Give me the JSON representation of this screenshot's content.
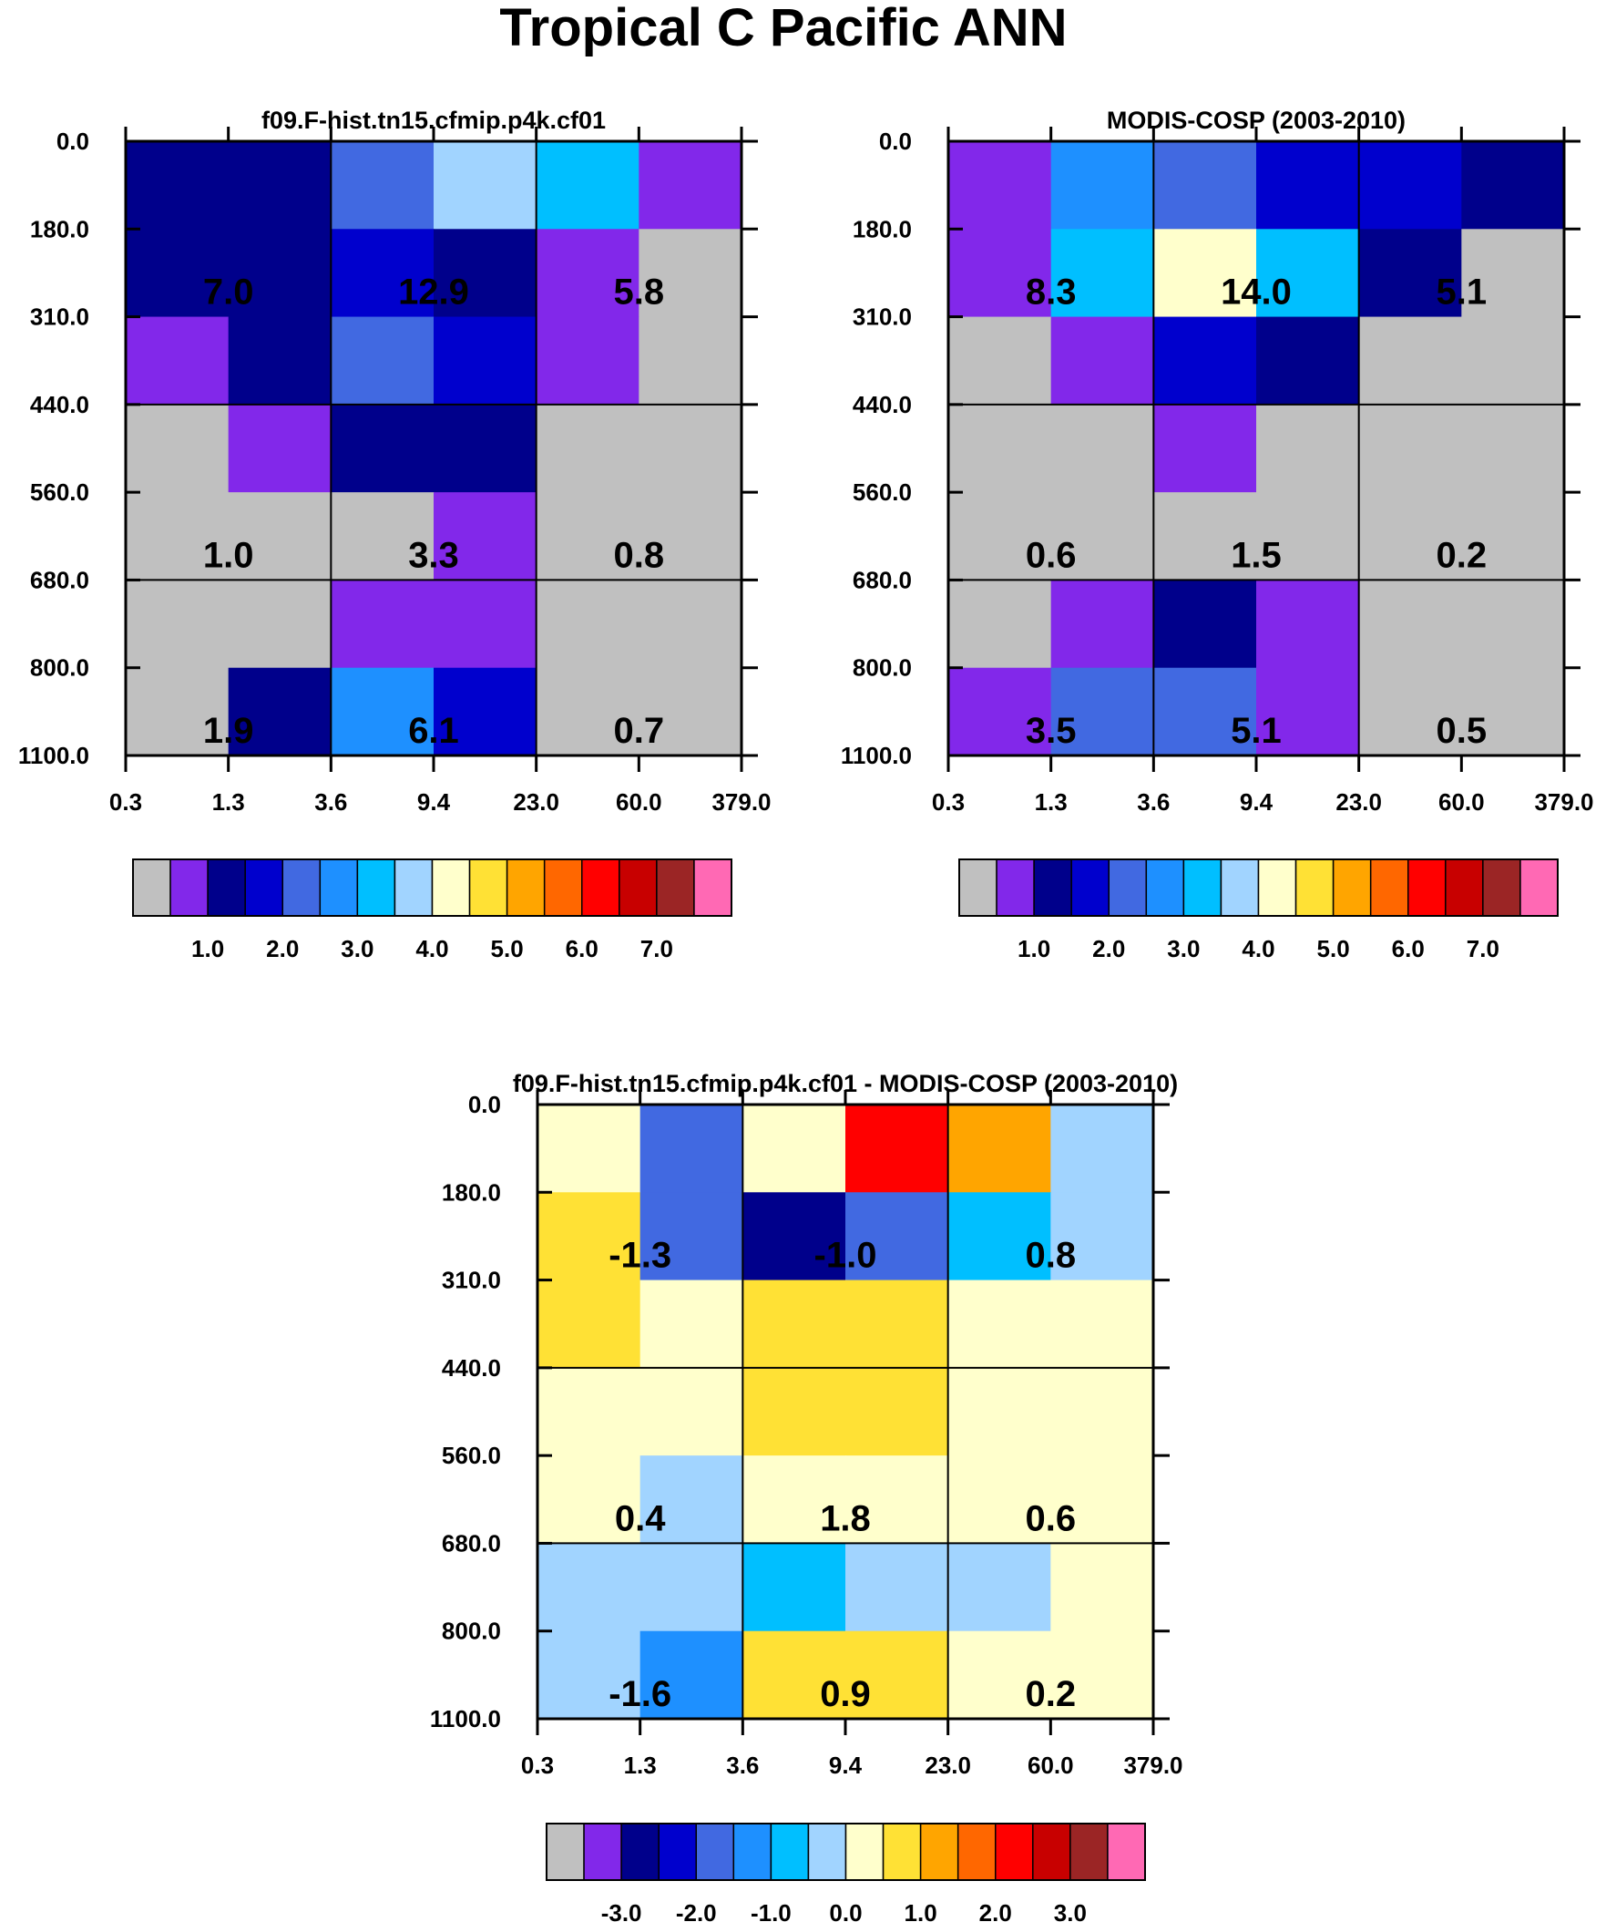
{
  "title": "Tropical C Pacific ANN",
  "colors": {
    "palette": [
      "#c0c0c0",
      "#8228ea",
      "#00008b",
      "#0000cd",
      "#4169e1",
      "#1e90ff",
      "#00bfff",
      "#a1d4ff",
      "#ffffcc",
      "#ffe135",
      "#ffa500",
      "#ff6700",
      "#ff0000",
      "#c80000",
      "#9b2525",
      "#ff69b4"
    ],
    "grid": "#000000"
  },
  "chart_data": [
    {
      "type": "heatmap",
      "title": "f09.F-hist.tn15.cfmip.p4k.cf01",
      "xticks": [
        "0.3",
        "1.3",
        "3.6",
        "9.4",
        "23.0",
        "60.0",
        "379.0"
      ],
      "yticks": [
        "0.0",
        "180.0",
        "310.0",
        "440.0",
        "560.0",
        "680.0",
        "800.0",
        "1100.0"
      ],
      "cell_colors": [
        [
          2,
          2,
          4,
          7,
          6,
          1
        ],
        [
          2,
          2,
          3,
          2,
          1,
          0
        ],
        [
          1,
          2,
          4,
          3,
          1,
          0
        ],
        [
          0,
          1,
          2,
          2,
          0,
          0
        ],
        [
          0,
          0,
          0,
          1,
          0,
          0
        ],
        [
          0,
          0,
          1,
          1,
          0,
          0
        ],
        [
          0,
          2,
          5,
          3,
          0,
          0
        ]
      ],
      "block_labels": [
        [
          "7.0",
          "12.9",
          "5.8"
        ],
        [
          "1.0",
          "3.3",
          "0.8"
        ],
        [
          "1.9",
          "6.1",
          "0.7"
        ]
      ],
      "colorbar": {
        "labels": [
          "1.0",
          "2.0",
          "3.0",
          "4.0",
          "5.0",
          "6.0",
          "7.0"
        ]
      }
    },
    {
      "type": "heatmap",
      "title": "MODIS-COSP (2003-2010)",
      "xticks": [
        "0.3",
        "1.3",
        "3.6",
        "9.4",
        "23.0",
        "60.0",
        "379.0"
      ],
      "yticks": [
        "0.0",
        "180.0",
        "310.0",
        "440.0",
        "560.0",
        "680.0",
        "800.0",
        "1100.0"
      ],
      "cell_colors": [
        [
          1,
          5,
          4,
          3,
          3,
          2
        ],
        [
          1,
          6,
          8,
          6,
          2,
          0
        ],
        [
          0,
          1,
          3,
          2,
          0,
          0
        ],
        [
          0,
          0,
          1,
          0,
          0,
          0
        ],
        [
          0,
          0,
          0,
          0,
          0,
          0
        ],
        [
          0,
          1,
          2,
          1,
          0,
          0
        ],
        [
          1,
          4,
          4,
          1,
          0,
          0
        ]
      ],
      "block_labels": [
        [
          "8.3",
          "14.0",
          "5.1"
        ],
        [
          "0.6",
          "1.5",
          "0.2"
        ],
        [
          "3.5",
          "5.1",
          "0.5"
        ]
      ],
      "colorbar": {
        "labels": [
          "1.0",
          "2.0",
          "3.0",
          "4.0",
          "5.0",
          "6.0",
          "7.0"
        ]
      }
    },
    {
      "type": "heatmap",
      "title": "f09.F-hist.tn15.cfmip.p4k.cf01 - MODIS-COSP (2003-2010)",
      "xticks": [
        "0.3",
        "1.3",
        "3.6",
        "9.4",
        "23.0",
        "60.0",
        "379.0"
      ],
      "yticks": [
        "0.0",
        "180.0",
        "310.0",
        "440.0",
        "560.0",
        "680.0",
        "800.0",
        "1100.0"
      ],
      "cell_colors": [
        [
          8,
          4,
          8,
          12,
          10,
          7
        ],
        [
          9,
          4,
          2,
          4,
          6,
          7
        ],
        [
          9,
          8,
          9,
          9,
          8,
          8
        ],
        [
          8,
          8,
          9,
          9,
          8,
          8
        ],
        [
          8,
          7,
          8,
          8,
          8,
          8
        ],
        [
          7,
          7,
          6,
          7,
          7,
          8
        ],
        [
          7,
          5,
          9,
          9,
          8,
          8
        ]
      ],
      "block_labels": [
        [
          "-1.3",
          "-1.0",
          "0.8"
        ],
        [
          "0.4",
          "1.8",
          "0.6"
        ],
        [
          "-1.6",
          "0.9",
          "0.2"
        ]
      ],
      "colorbar": {
        "labels": [
          "-3.0",
          "-2.0",
          "-1.0",
          "0.0",
          "1.0",
          "2.0",
          "3.0"
        ]
      }
    }
  ]
}
